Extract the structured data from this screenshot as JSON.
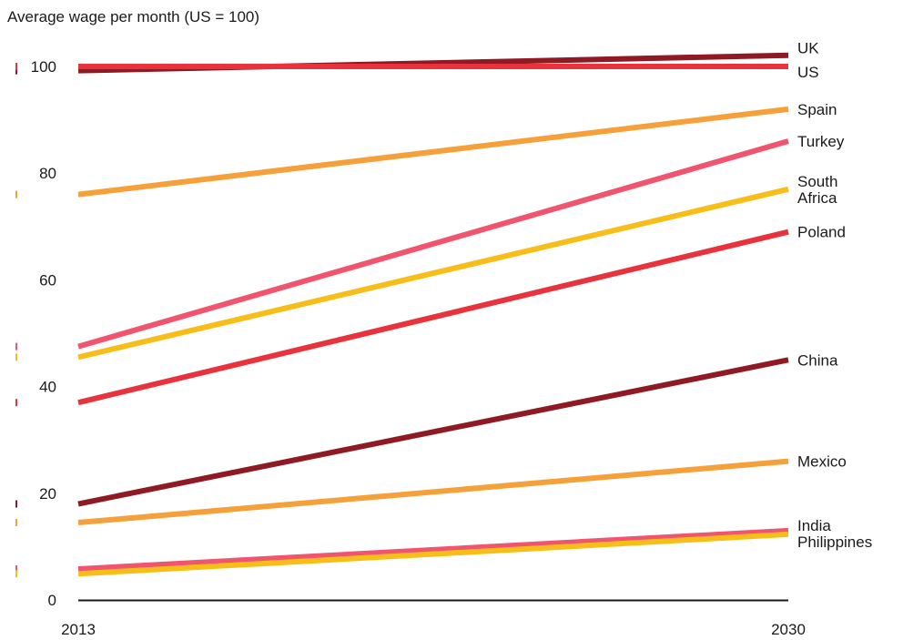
{
  "chart_data": {
    "type": "line",
    "title": "Average wage per month (US = 100)",
    "xlabel": "",
    "ylabel": "",
    "x": [
      "2013",
      "2030"
    ],
    "ylim": [
      0,
      100
    ],
    "yticks": [
      "0",
      "20",
      "40",
      "60",
      "80",
      "100"
    ],
    "grid": false,
    "legend": "direct labels at line ends",
    "series": [
      {
        "name": "UK",
        "values": [
          99.2,
          102.1
        ],
        "color": "#8f1a24"
      },
      {
        "name": "US",
        "values": [
          100,
          100
        ],
        "color": "#e8323c"
      },
      {
        "name": "Spain",
        "values": [
          76,
          92
        ],
        "color": "#f6a03a"
      },
      {
        "name": "Turkey",
        "values": [
          47.5,
          86
        ],
        "color": "#f0546e"
      },
      {
        "name": "South Africa",
        "values": [
          45.5,
          77
        ],
        "color": "#f7be1a"
      },
      {
        "name": "Poland",
        "values": [
          37,
          69
        ],
        "color": "#e8323c"
      },
      {
        "name": "China",
        "values": [
          18,
          45
        ],
        "color": "#8f1a24"
      },
      {
        "name": "Mexico",
        "values": [
          14.5,
          26
        ],
        "color": "#f6a03a"
      },
      {
        "name": "India",
        "values": [
          5.8,
          13
        ],
        "color": "#f0546e"
      },
      {
        "name": "Philippines",
        "values": [
          4.9,
          12.3
        ],
        "color": "#f7be1a"
      }
    ],
    "label_lines": {
      "South Africa": [
        "South",
        "Africa"
      ]
    }
  }
}
